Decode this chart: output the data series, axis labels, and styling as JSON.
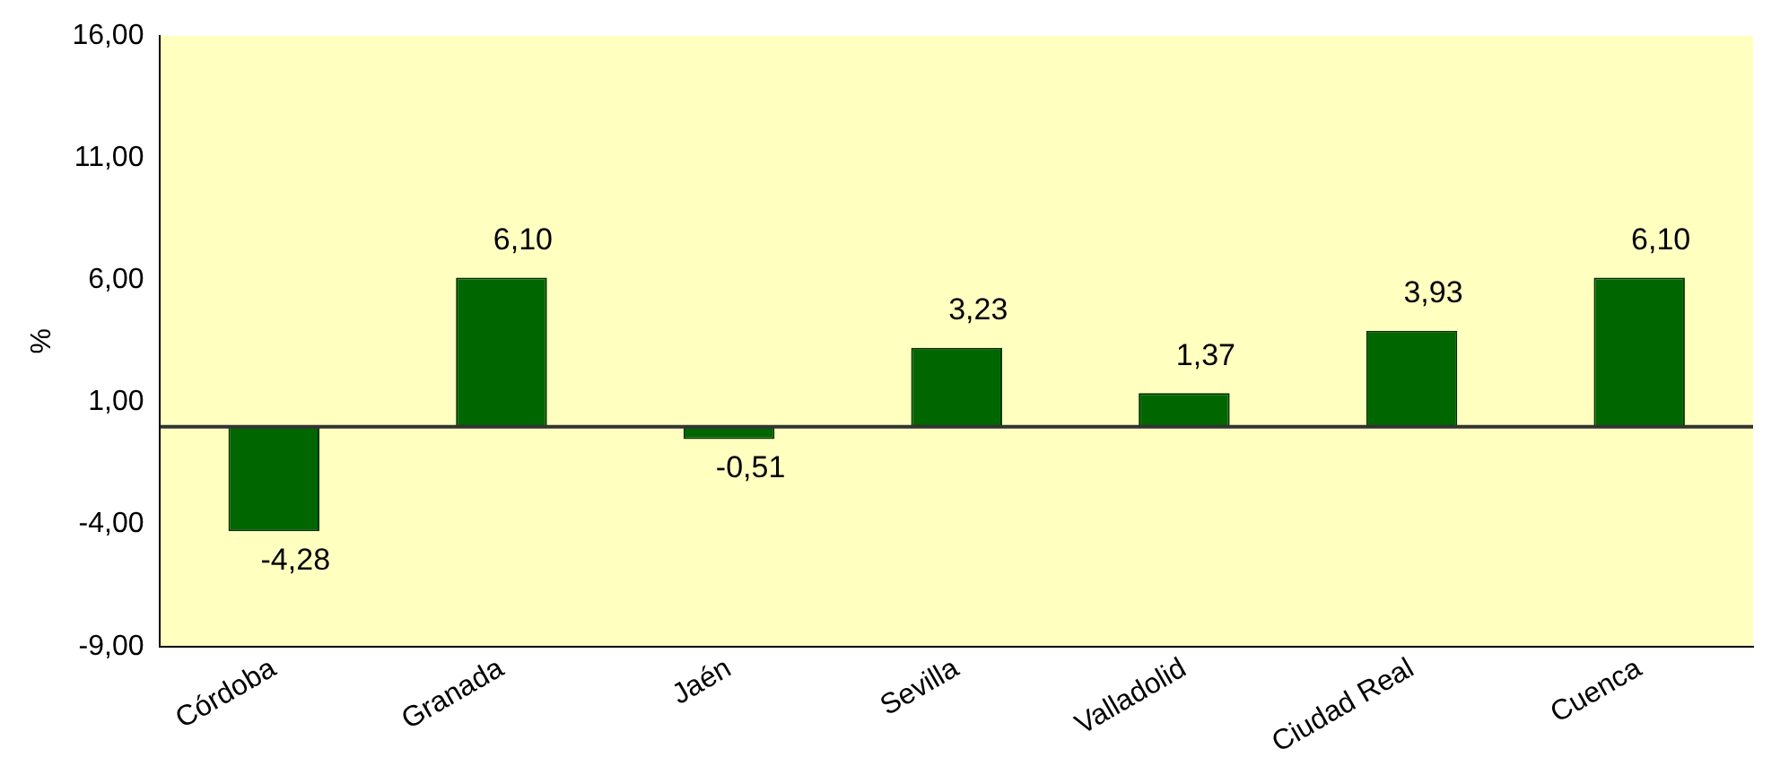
{
  "chart_data": {
    "type": "bar",
    "ylabel": "%",
    "categories": [
      "Córdoba",
      "Granada",
      "Jaén",
      "Sevilla",
      "Valladolid",
      "Ciudad Real",
      "Cuenca"
    ],
    "values": [
      -4.28,
      6.1,
      -0.51,
      3.23,
      1.37,
      3.93,
      6.1
    ],
    "value_labels": [
      "-4,28",
      "6,10",
      "-0,51",
      "3,23",
      "1,37",
      "3,93",
      "6,10"
    ],
    "color": "#006600",
    "ylim": [
      -9,
      16
    ],
    "yticks": [
      {
        "value": -9,
        "label": "-9,00"
      },
      {
        "value": -4,
        "label": "-4,00"
      },
      {
        "value": 1,
        "label": "1,00"
      },
      {
        "value": 6,
        "label": "6,00"
      },
      {
        "value": 11,
        "label": "11,00"
      },
      {
        "value": 16,
        "label": "16,00"
      }
    ],
    "ref_lines": [
      {
        "axis": "y",
        "value": 0,
        "color": "#333333"
      }
    ],
    "grid": false,
    "legend": false
  }
}
